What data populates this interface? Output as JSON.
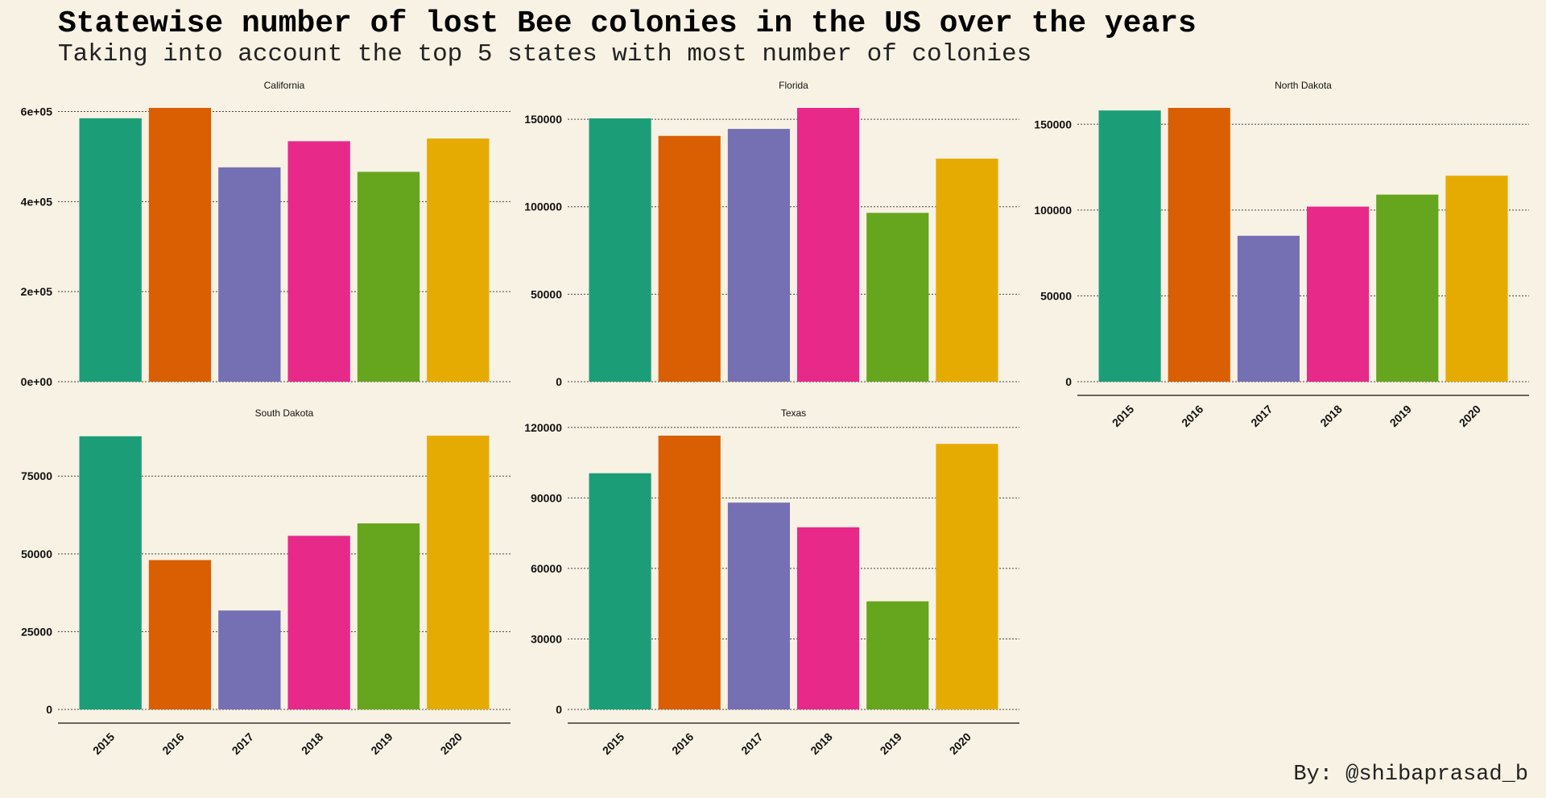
{
  "title": "Statewise number of lost Bee colonies in the US over the years",
  "subtitle": "Taking into account the top 5 states with most number of colonies",
  "caption": "By: @shibaprasad_b",
  "colors": [
    "#1b9e77",
    "#d95f02",
    "#7570b3",
    "#e7298a",
    "#66a61e",
    "#e6ab02"
  ],
  "chart_data": [
    {
      "type": "bar",
      "title": "California",
      "categories": [
        "2015",
        "2016",
        "2017",
        "2018",
        "2019",
        "2020"
      ],
      "values": [
        585000,
        608000,
        476000,
        534000,
        466000,
        540000
      ],
      "ylim": [
        0,
        608000
      ],
      "yticks": [
        0,
        200000,
        400000,
        600000
      ],
      "ytick_labels": [
        "0e+00",
        "2e+05",
        "4e+05",
        "6e+05"
      ],
      "xlabel": "",
      "ylabel": ""
    },
    {
      "type": "bar",
      "title": "Florida",
      "categories": [
        "2015",
        "2016",
        "2017",
        "2018",
        "2019",
        "2020"
      ],
      "values": [
        150500,
        140500,
        144500,
        156500,
        96500,
        127500
      ],
      "ylim": [
        0,
        156500
      ],
      "yticks": [
        0,
        50000,
        100000,
        150000
      ],
      "ytick_labels": [
        "0",
        "50000",
        "100000",
        "150000"
      ],
      "xlabel": "",
      "ylabel": ""
    },
    {
      "type": "bar",
      "title": "North Dakota",
      "categories": [
        "2015",
        "2016",
        "2017",
        "2018",
        "2019",
        "2020"
      ],
      "values": [
        158000,
        159500,
        85000,
        102000,
        109000,
        120000
      ],
      "ylim": [
        0,
        159500
      ],
      "yticks": [
        0,
        50000,
        100000,
        150000
      ],
      "ytick_labels": [
        "0",
        "50000",
        "100000",
        "150000"
      ],
      "xlabel": "",
      "ylabel": ""
    },
    {
      "type": "bar",
      "title": "South Dakota",
      "categories": [
        "2015",
        "2016",
        "2017",
        "2018",
        "2019",
        "2020"
      ],
      "values": [
        87800,
        48000,
        31800,
        55800,
        59800,
        88000
      ],
      "ylim": [
        0,
        88000
      ],
      "yticks": [
        0,
        25000,
        50000,
        75000
      ],
      "ytick_labels": [
        "0",
        "25000",
        "50000",
        "75000"
      ],
      "xlabel": "",
      "ylabel": ""
    },
    {
      "type": "bar",
      "title": "Texas",
      "categories": [
        "2015",
        "2016",
        "2017",
        "2018",
        "2019",
        "2020"
      ],
      "values": [
        100500,
        116500,
        88000,
        77500,
        46000,
        113000
      ],
      "ylim": [
        0,
        116500
      ],
      "yticks": [
        0,
        30000,
        60000,
        90000,
        120000
      ],
      "ytick_labels": [
        "0",
        "30000",
        "60000",
        "90000",
        "120000"
      ],
      "xlabel": "",
      "ylabel": ""
    }
  ]
}
